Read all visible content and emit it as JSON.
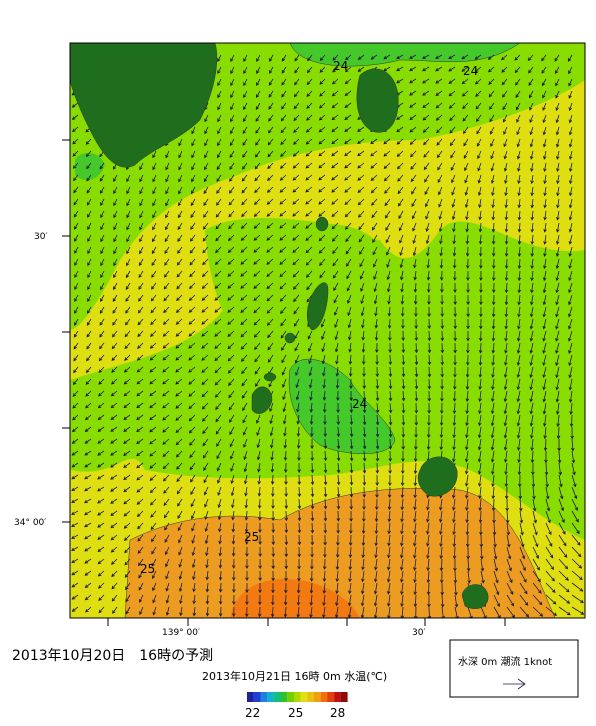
{
  "map": {
    "lat_labels": [
      "30′",
      "34° 00′"
    ],
    "lon_labels": [
      "139° 00′",
      "30′"
    ],
    "contour_labels": [
      "24",
      "24",
      "24",
      "25",
      "25"
    ],
    "title": "2013年10月20日　16時の予測",
    "subtitle": "2013年10月21日 16時 0m 水温(℃)",
    "colorbar_labels": [
      "22",
      "25",
      "28"
    ],
    "legend": "水深 0m  潮流 1knot"
  }
}
